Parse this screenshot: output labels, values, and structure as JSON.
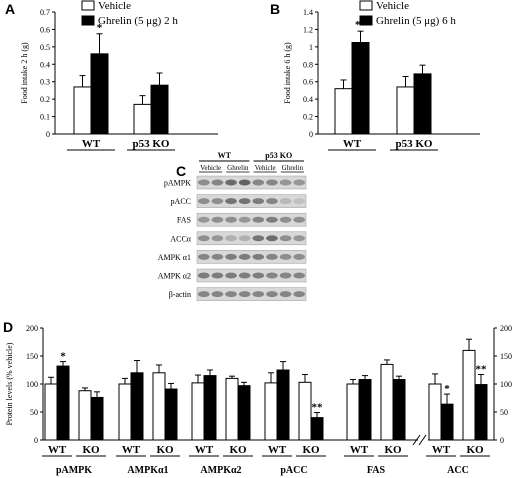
{
  "chart_data": [
    {
      "panel": "A",
      "type": "bar",
      "ylabel": "Food intake 2 h (g)",
      "ylim": [
        0,
        0.7
      ],
      "yticks": [
        0,
        0.1,
        0.2,
        0.3,
        0.4,
        0.5,
        0.6,
        0.7
      ],
      "yticklabels": [
        "0",
        "0.1",
        "0.2",
        "0.3",
        "0.4",
        "0.5",
        "0.6",
        "0.7"
      ],
      "categories": [
        "WT",
        "p53 KO"
      ],
      "legend": [
        "Vehicle",
        "Ghrelin (5 μg) 2 h"
      ],
      "legend_position": "top",
      "series": [
        {
          "name": "Vehicle",
          "color": "#ffffff",
          "values": [
            0.27,
            0.17
          ],
          "errors": [
            0.065,
            0.05
          ],
          "annotations": [
            "",
            ""
          ]
        },
        {
          "name": "Ghrelin (5 μg) 2 h",
          "color": "#000000",
          "values": [
            0.46,
            0.28
          ],
          "errors": [
            0.115,
            0.07
          ],
          "annotations": [
            "*",
            ""
          ]
        }
      ]
    },
    {
      "panel": "B",
      "type": "bar",
      "ylabel": "Food intake 6 h (g)",
      "ylim": [
        0,
        1.4
      ],
      "yticks": [
        0,
        0.2,
        0.4,
        0.6,
        0.8,
        1,
        1.2,
        1.4
      ],
      "yticklabels": [
        "0",
        "0.2",
        "0.4",
        "0.6",
        "0.8",
        "1",
        "1.2",
        "1.4"
      ],
      "categories": [
        "WT",
        "p53 KO"
      ],
      "legend": [
        "Vehicle",
        "Ghrelin (5 μg) 6 h"
      ],
      "legend_position": "top",
      "series": [
        {
          "name": "Vehicle",
          "color": "#ffffff",
          "values": [
            0.52,
            0.54
          ],
          "errors": [
            0.1,
            0.12
          ],
          "annotations": [
            "",
            ""
          ]
        },
        {
          "name": "Ghrelin (5 μg) 6 h",
          "color": "#000000",
          "values": [
            1.05,
            0.69
          ],
          "errors": [
            0.13,
            0.1
          ],
          "annotations": [
            "**",
            ""
          ]
        }
      ]
    },
    {
      "panel": "C",
      "type": "western_blot",
      "group_labels": [
        "WT",
        "p53 KO"
      ],
      "lane_labels": [
        "Vehicle",
        "Ghrelin",
        "Vehicle",
        "Ghrelin"
      ],
      "lanes_per_condition": 2,
      "rows": [
        {
          "label": "pAMPK",
          "intensities": [
            0.55,
            0.6,
            0.75,
            0.8,
            0.6,
            0.6,
            0.5,
            0.5
          ]
        },
        {
          "label": "pACC",
          "intensities": [
            0.55,
            0.55,
            0.7,
            0.7,
            0.65,
            0.6,
            0.3,
            0.25
          ]
        },
        {
          "label": "FAS",
          "intensities": [
            0.5,
            0.55,
            0.55,
            0.5,
            0.6,
            0.65,
            0.55,
            0.55
          ]
        },
        {
          "label": "ACCα",
          "intensities": [
            0.55,
            0.5,
            0.35,
            0.35,
            0.7,
            0.75,
            0.55,
            0.5
          ]
        },
        {
          "label": "AMPK α1",
          "intensities": [
            0.6,
            0.6,
            0.65,
            0.65,
            0.65,
            0.6,
            0.55,
            0.55
          ]
        },
        {
          "label": "AMPK α2",
          "intensities": [
            0.65,
            0.65,
            0.65,
            0.65,
            0.65,
            0.6,
            0.6,
            0.6
          ]
        },
        {
          "label": "β-actin",
          "intensities": [
            0.6,
            0.6,
            0.6,
            0.6,
            0.6,
            0.6,
            0.6,
            0.6
          ]
        }
      ]
    },
    {
      "panel": "D",
      "type": "bar",
      "ylabel": "Protein levels (% vehicle)",
      "ylim": [
        0,
        200
      ],
      "yticks": [
        0,
        50,
        100,
        150,
        200
      ],
      "yticklabels": [
        "0",
        "50",
        "100",
        "150",
        "200"
      ],
      "ylim_right": [
        0,
        200
      ],
      "yticklabels_right": [
        "0",
        "50",
        "100",
        "150",
        "200"
      ],
      "axis_break": true,
      "groups": [
        {
          "name": "pAMPK",
          "categories": [
            "WT",
            "KO"
          ],
          "vehicle": [
            100,
            88
          ],
          "vehicle_err": [
            12,
            5
          ],
          "ghrelin": [
            132,
            76
          ],
          "ghrelin_err": [
            8,
            10
          ],
          "annotations": [
            "*",
            ""
          ]
        },
        {
          "name": "AMPKα1",
          "categories": [
            "WT",
            "KO"
          ],
          "vehicle": [
            100,
            120
          ],
          "vehicle_err": [
            10,
            14
          ],
          "ghrelin": [
            120,
            91
          ],
          "ghrelin_err": [
            22,
            10
          ],
          "annotations": [
            "",
            ""
          ]
        },
        {
          "name": "AMPKα2",
          "categories": [
            "WT",
            "KO"
          ],
          "vehicle": [
            102,
            110
          ],
          "vehicle_err": [
            14,
            4
          ],
          "ghrelin": [
            115,
            97
          ],
          "ghrelin_err": [
            10,
            6
          ],
          "annotations": [
            "",
            ""
          ]
        },
        {
          "name": "pACC",
          "categories": [
            "WT",
            "KO"
          ],
          "vehicle": [
            102,
            103
          ],
          "vehicle_err": [
            18,
            14
          ],
          "ghrelin": [
            125,
            40
          ],
          "ghrelin_err": [
            15,
            9
          ],
          "annotations": [
            "",
            "**"
          ]
        },
        {
          "name": "FAS",
          "categories": [
            "WT",
            "KO"
          ],
          "vehicle": [
            100,
            135
          ],
          "vehicle_err": [
            8,
            8
          ],
          "ghrelin": [
            108,
            108
          ],
          "ghrelin_err": [
            7,
            6
          ],
          "annotations": [
            "",
            ""
          ]
        },
        {
          "name": "ACC",
          "categories": [
            "WT",
            "KO"
          ],
          "vehicle": [
            100,
            160
          ],
          "vehicle_err": [
            18,
            20
          ],
          "ghrelin": [
            64,
            99
          ],
          "ghrelin_err": [
            18,
            18
          ],
          "annotations": [
            "*",
            "**"
          ],
          "axis": "right"
        }
      ]
    }
  ]
}
